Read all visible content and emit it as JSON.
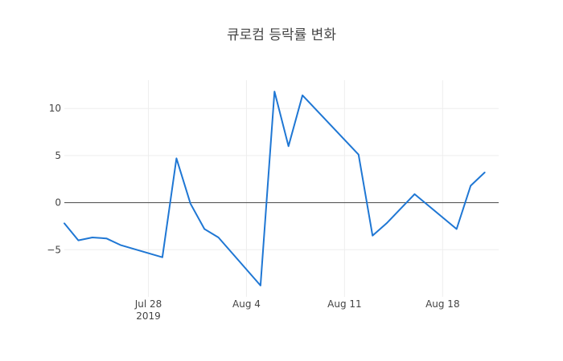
{
  "chart_data": {
    "type": "line",
    "title": "큐로컴 등락률 변화",
    "xlabel": "",
    "ylabel": "",
    "x_axis_type": "date",
    "xlim": [
      "2019-07-22",
      "2019-08-22"
    ],
    "ylim": [
      -10,
      13
    ],
    "grid": true,
    "zero_line": true,
    "x_ticks": [
      {
        "date": "2019-07-28",
        "label": "Jul 28",
        "sublabel": "2019"
      },
      {
        "date": "2019-08-04",
        "label": "Aug 4",
        "sublabel": ""
      },
      {
        "date": "2019-08-11",
        "label": "Aug 11",
        "sublabel": ""
      },
      {
        "date": "2019-08-18",
        "label": "Aug 18",
        "sublabel": ""
      }
    ],
    "y_ticks": [
      {
        "value": 10,
        "label": "10"
      },
      {
        "value": 5,
        "label": "5"
      },
      {
        "value": 0,
        "label": "0"
      },
      {
        "value": -5,
        "label": "−5"
      }
    ],
    "series": [
      {
        "color": "#1f77d4",
        "x": [
          "2019-07-22",
          "2019-07-23",
          "2019-07-24",
          "2019-07-25",
          "2019-07-26",
          "2019-07-29",
          "2019-07-30",
          "2019-07-31",
          "2019-08-01",
          "2019-08-02",
          "2019-08-05",
          "2019-08-06",
          "2019-08-07",
          "2019-08-08",
          "2019-08-12",
          "2019-08-13",
          "2019-08-14",
          "2019-08-16",
          "2019-08-19",
          "2019-08-20",
          "2019-08-21"
        ],
        "y": [
          -2.2,
          -4.0,
          -3.7,
          -3.8,
          -4.5,
          -5.8,
          4.7,
          -0.1,
          -2.8,
          -3.7,
          -8.8,
          11.8,
          6.0,
          11.4,
          5.1,
          -3.5,
          -2.2,
          0.9,
          -2.8,
          1.8,
          3.2
        ]
      }
    ]
  }
}
